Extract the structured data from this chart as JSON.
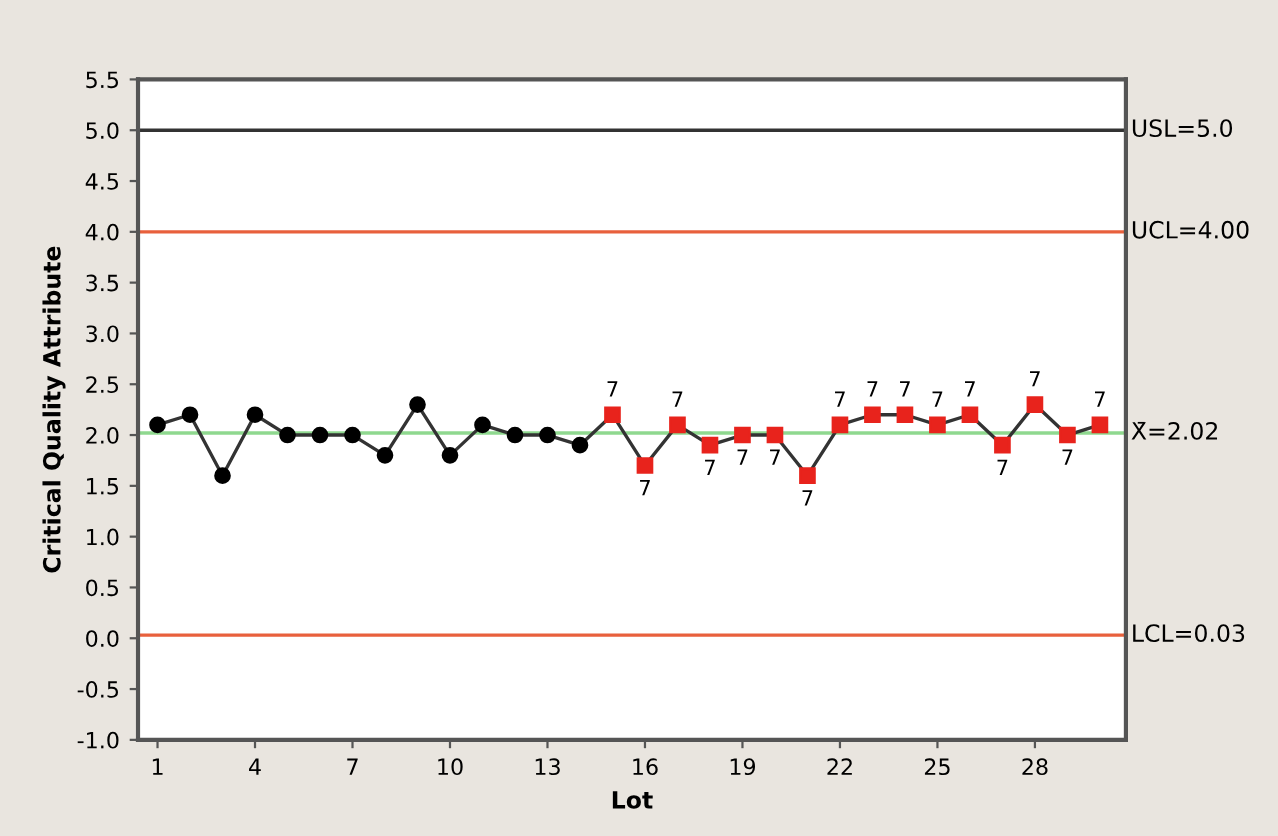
{
  "chart_data": {
    "type": "line",
    "xlabel": "Lot",
    "ylabel": "Critical Quality Attribute",
    "x": [
      1,
      2,
      3,
      4,
      5,
      6,
      7,
      8,
      9,
      10,
      11,
      12,
      13,
      14,
      15,
      16,
      17,
      18,
      19,
      20,
      21,
      22,
      23,
      24,
      25,
      26,
      27,
      28,
      29,
      30
    ],
    "series": [
      {
        "color": "#333333",
        "values": [
          2.1,
          2.2,
          1.6,
          2.2,
          2.0,
          2.0,
          2.0,
          1.8,
          2.3,
          1.8,
          2.1,
          2.0,
          2.0,
          1.9,
          2.2,
          1.7,
          2.1,
          1.9,
          2.0,
          2.0,
          1.6,
          2.1,
          2.2,
          2.2,
          2.1,
          2.2,
          1.9,
          2.3,
          2.0,
          2.1
        ],
        "colors": [
          "#000000",
          "#000000",
          "#000000",
          "#000000",
          "#000000",
          "#000000",
          "#000000",
          "#000000",
          "#000000",
          "#000000",
          "#000000",
          "#000000",
          "#000000",
          "#000000",
          "#e8231c",
          "#e8231c",
          "#e8231c",
          "#e8231c",
          "#e8231c",
          "#e8231c",
          "#e8231c",
          "#e8231c",
          "#e8231c",
          "#e8231c",
          "#e8231c",
          "#e8231c",
          "#e8231c",
          "#e8231c",
          "#e8231c",
          "#e8231c"
        ]
      }
    ],
    "xlim": [
      0.4,
      30.8
    ],
    "xticks": [
      1,
      4,
      7,
      10,
      13,
      16,
      19,
      22,
      25,
      28
    ],
    "ylim": [
      -1.0,
      5.5
    ],
    "yticks": [
      {
        "value": -1.0,
        "label": "-1.0"
      },
      {
        "value": -0.5,
        "label": "-0.5"
      },
      {
        "value": 0.0,
        "label": "0.0"
      },
      {
        "value": 0.5,
        "label": "0.5"
      },
      {
        "value": 1.0,
        "label": "1.0"
      },
      {
        "value": 1.5,
        "label": "1.5"
      },
      {
        "value": 2.0,
        "label": "2.0"
      },
      {
        "value": 2.5,
        "label": "2.5"
      },
      {
        "value": 3.0,
        "label": "3.0"
      },
      {
        "value": 3.5,
        "label": "3.5"
      },
      {
        "value": 4.0,
        "label": "4.0"
      },
      {
        "value": 4.5,
        "label": "4.5"
      },
      {
        "value": 5.0,
        "label": "5.0"
      },
      {
        "value": 5.5,
        "label": "5.5"
      }
    ],
    "ref_lines": [
      {
        "axis": "y",
        "value": 5.0,
        "label": "USL=5.0",
        "color": "#333333"
      },
      {
        "axis": "y",
        "value": 4.0,
        "label": "UCL=4.00",
        "color": "#e8603c"
      },
      {
        "axis": "y",
        "value": 2.02,
        "label": "X̄=2.02",
        "color": "#8fd88f"
      },
      {
        "axis": "y",
        "value": 0.03,
        "label": "LCL=0.03",
        "color": "#e8603c"
      }
    ],
    "annotations": [
      {
        "text": "7",
        "x": 15,
        "y": 2.2
      },
      {
        "text": "7",
        "x": 16,
        "y": 1.7
      },
      {
        "text": "7",
        "x": 17,
        "y": 2.1
      },
      {
        "text": "7",
        "x": 18,
        "y": 1.9
      },
      {
        "text": "7",
        "x": 19,
        "y": 2.0
      },
      {
        "text": "7",
        "x": 20,
        "y": 2.0
      },
      {
        "text": "7",
        "x": 21,
        "y": 1.6
      },
      {
        "text": "7",
        "x": 22,
        "y": 2.1
      },
      {
        "text": "7",
        "x": 23,
        "y": 2.2
      },
      {
        "text": "7",
        "x": 24,
        "y": 2.2
      },
      {
        "text": "7",
        "x": 25,
        "y": 2.1
      },
      {
        "text": "7",
        "x": 26,
        "y": 2.2
      },
      {
        "text": "7",
        "x": 27,
        "y": 1.9
      },
      {
        "text": "7",
        "x": 28,
        "y": 2.3
      },
      {
        "text": "7",
        "x": 29,
        "y": 2.0
      },
      {
        "text": "7",
        "x": 30,
        "y": 2.1
      }
    ],
    "marker": "circle",
    "grid": false,
    "legend": false
  }
}
